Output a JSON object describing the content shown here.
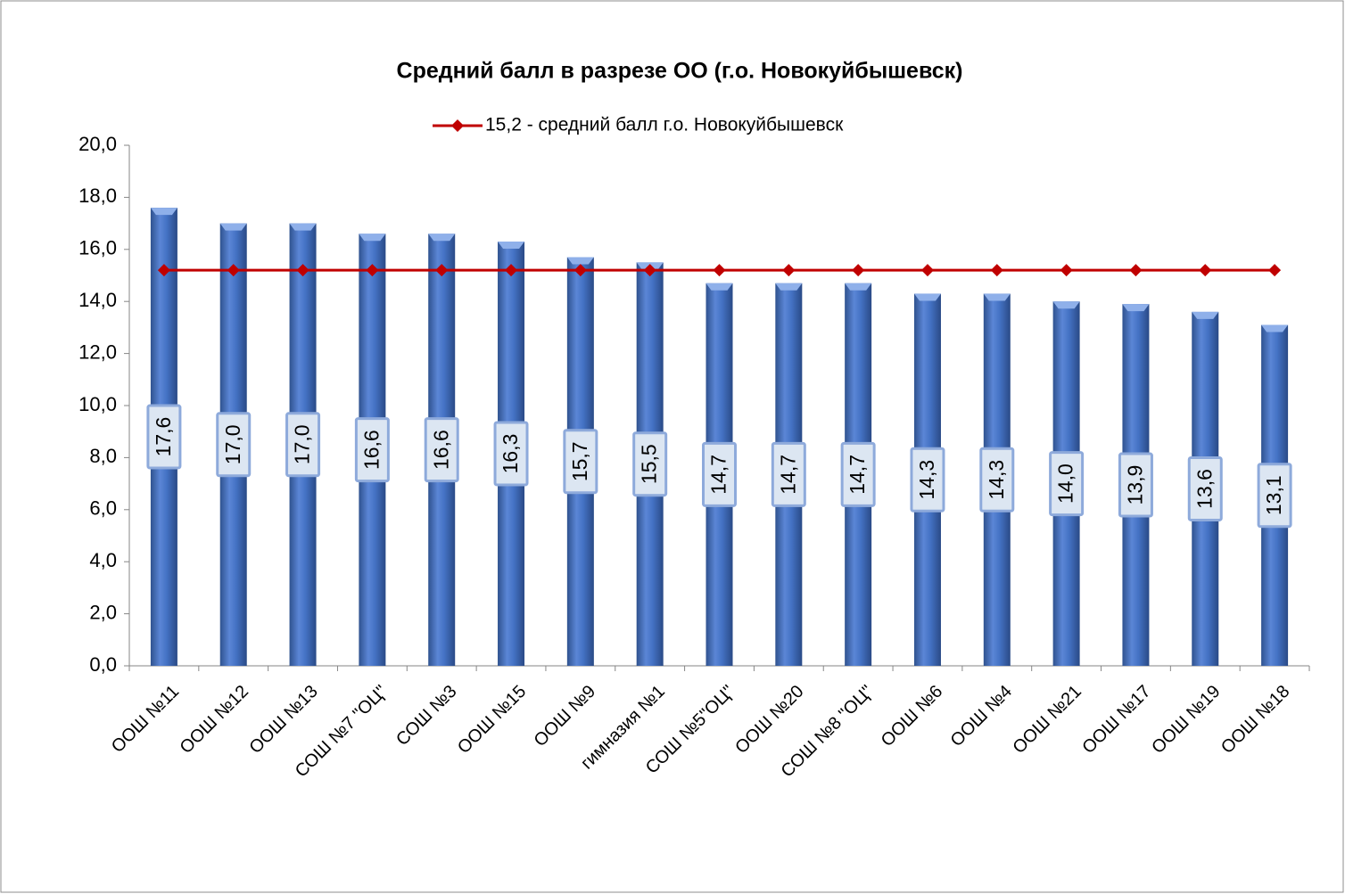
{
  "chart_data": {
    "type": "bar",
    "title": "Средний балл в разрезе ОО (г.о. Новокуйбышевск)",
    "categories": [
      "ООШ №11",
      "ООШ №12",
      "ООШ №13",
      "СОШ №7 \"ОЦ\"",
      "СОШ №3",
      "ООШ №15",
      "ООШ №9",
      "гимназия №1",
      "СОШ №5\"ОЦ\"",
      "ООШ №20",
      "СОШ №8 \"ОЦ\"",
      "ООШ №6",
      "ООШ №4",
      "ООШ №21",
      "ООШ №17",
      "ООШ №19",
      "ООШ №18"
    ],
    "series": [
      {
        "color": "#4472c4",
        "values": [
          17.6,
          17.0,
          17.0,
          16.6,
          16.6,
          16.3,
          15.7,
          15.5,
          14.7,
          14.7,
          14.7,
          14.3,
          14.3,
          14.0,
          13.9,
          13.6,
          13.1
        ],
        "value_labels": [
          "17,6",
          "17,0",
          "17,0",
          "16,6",
          "16,6",
          "16,3",
          "15,7",
          "15,5",
          "14,7",
          "14,7",
          "14,7",
          "14,3",
          "14,3",
          "14,0",
          "13,9",
          "13,6",
          "13,1"
        ]
      },
      {
        "name": "15,2 - средний балл г.о. Новокуйбышевск",
        "type": "line",
        "color": "#c00000",
        "values": [
          15.2,
          15.2,
          15.2,
          15.2,
          15.2,
          15.2,
          15.2,
          15.2,
          15.2,
          15.2,
          15.2,
          15.2,
          15.2,
          15.2,
          15.2,
          15.2,
          15.2
        ]
      }
    ],
    "ylim": [
      0,
      20
    ],
    "yticks": [
      {
        "value": 0,
        "label": "0,0"
      },
      {
        "value": 2,
        "label": "2,0"
      },
      {
        "value": 4,
        "label": "4,0"
      },
      {
        "value": 6,
        "label": "6,0"
      },
      {
        "value": 8,
        "label": "8,0"
      },
      {
        "value": 10,
        "label": "10,0"
      },
      {
        "value": 12,
        "label": "12,0"
      },
      {
        "value": 14,
        "label": "14,0"
      },
      {
        "value": 16,
        "label": "16,0"
      },
      {
        "value": 18,
        "label": "18,0"
      },
      {
        "value": 20,
        "label": "20,0"
      }
    ],
    "legend": "top"
  }
}
